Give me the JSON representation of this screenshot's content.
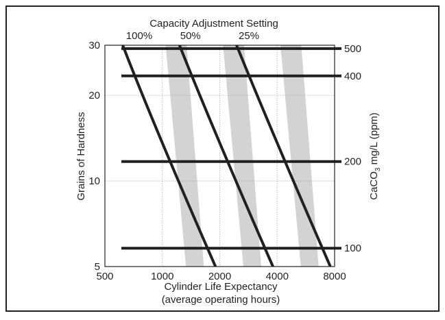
{
  "chart_data": {
    "type": "line",
    "title": "Capacity Adjustment Setting",
    "xlabel": "Cylinder Life Expectancy",
    "xlabel_sub": "(average operating hours)",
    "ylabel": "Grains of Hardness",
    "ylabel_right": {
      "base": "CaCO",
      "subscript": "3",
      "rest": " mg/L (ppm)"
    },
    "x_scale": "log",
    "y_scale": "log",
    "xlim": [
      500,
      8000
    ],
    "ylim": [
      5,
      30
    ],
    "x_ticks": [
      {
        "value": 500,
        "label": "500"
      },
      {
        "value": 1000,
        "label": "1000"
      },
      {
        "value": 2000,
        "label": "2000"
      },
      {
        "value": 4000,
        "label": "4000"
      },
      {
        "value": 8000,
        "label": "8000"
      }
    ],
    "y_ticks": [
      {
        "value": 5,
        "label": "5"
      },
      {
        "value": 10,
        "label": "10"
      },
      {
        "value": 20,
        "label": "20"
      },
      {
        "value": 30,
        "label": "30"
      }
    ],
    "grid": true,
    "series": [
      {
        "name": "100%",
        "points": [
          [
            620,
            30
          ],
          [
            1000,
            13.6
          ],
          [
            1900,
            5
          ]
        ]
      },
      {
        "name": "50%",
        "points": [
          [
            1230,
            30
          ],
          [
            2000,
            13.6
          ],
          [
            3800,
            5
          ]
        ]
      },
      {
        "name": "25%",
        "points": [
          [
            2450,
            30
          ],
          [
            4000,
            13.6
          ],
          [
            7600,
            5
          ]
        ]
      }
    ],
    "bands": [
      {
        "series": "100%",
        "top": [
          1040,
          1340
        ],
        "bottom": [
          1330,
          1650
        ]
      },
      {
        "series": "50%",
        "top": [
          2080,
          2680
        ],
        "bottom": [
          2660,
          3300
        ]
      },
      {
        "series": "25%",
        "top": [
          4160,
          5350
        ],
        "bottom": [
          5320,
          6600
        ]
      }
    ],
    "ppm_lines": [
      {
        "label": "500",
        "grains": 29.2
      },
      {
        "label": "400",
        "grains": 23.4
      },
      {
        "label": "200",
        "grains": 11.7
      },
      {
        "label": "100",
        "grains": 5.8
      }
    ],
    "colors": {
      "curve": "#231f20",
      "band": "#d3d3d3",
      "grid": "#9a9a9a",
      "frame": "#231f20"
    }
  }
}
